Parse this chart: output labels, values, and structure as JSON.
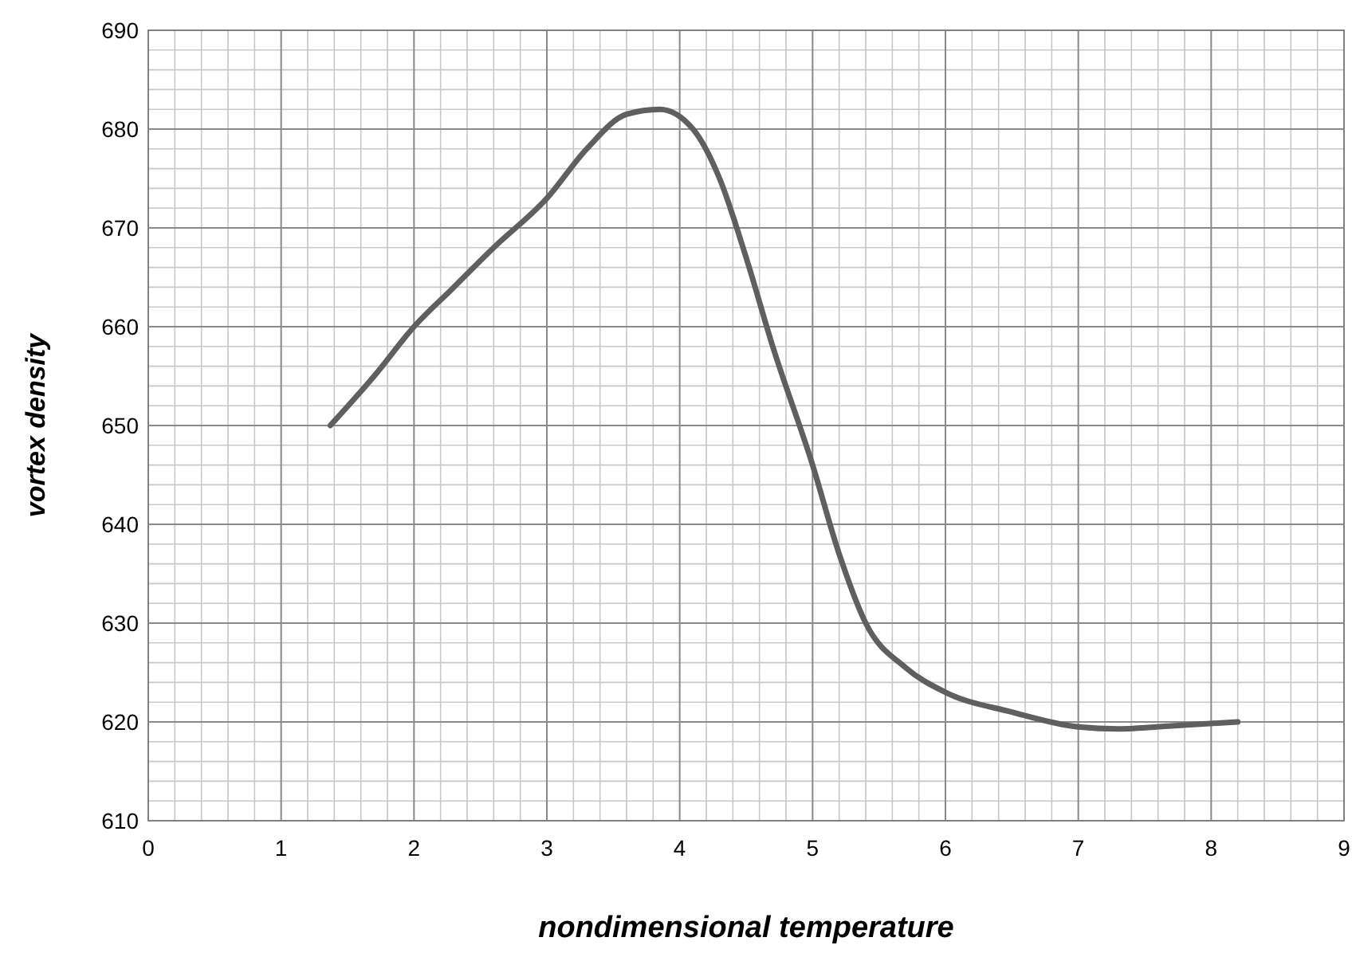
{
  "chart_data": {
    "type": "line",
    "xlabel": "nondimensional temperature",
    "ylabel": "vortex density",
    "xlim": [
      0,
      9
    ],
    "ylim": [
      610,
      690
    ],
    "xticks": [
      0,
      1,
      2,
      3,
      4,
      5,
      6,
      7,
      8,
      9
    ],
    "yticks": [
      610,
      620,
      630,
      640,
      650,
      660,
      670,
      680,
      690
    ],
    "grid": true,
    "marker": "none",
    "line_style": "solid",
    "series": [
      {
        "color": "#5f5f5f",
        "x": [
          1.37,
          1.7,
          2,
          2.3,
          2.6,
          3,
          3.3,
          3.6,
          3.85,
          4.1,
          4.3,
          4.5,
          4.7,
          5,
          5.2,
          5.4,
          5.7,
          6,
          6.5,
          7,
          7.3,
          7.7,
          8.2
        ],
        "values": [
          650,
          655,
          660,
          664,
          668,
          673,
          678,
          681.5,
          682,
          680,
          675,
          667,
          658,
          646,
          637,
          630,
          625.5,
          623,
          621,
          619.5,
          619.3,
          619.6,
          620
        ]
      }
    ]
  }
}
